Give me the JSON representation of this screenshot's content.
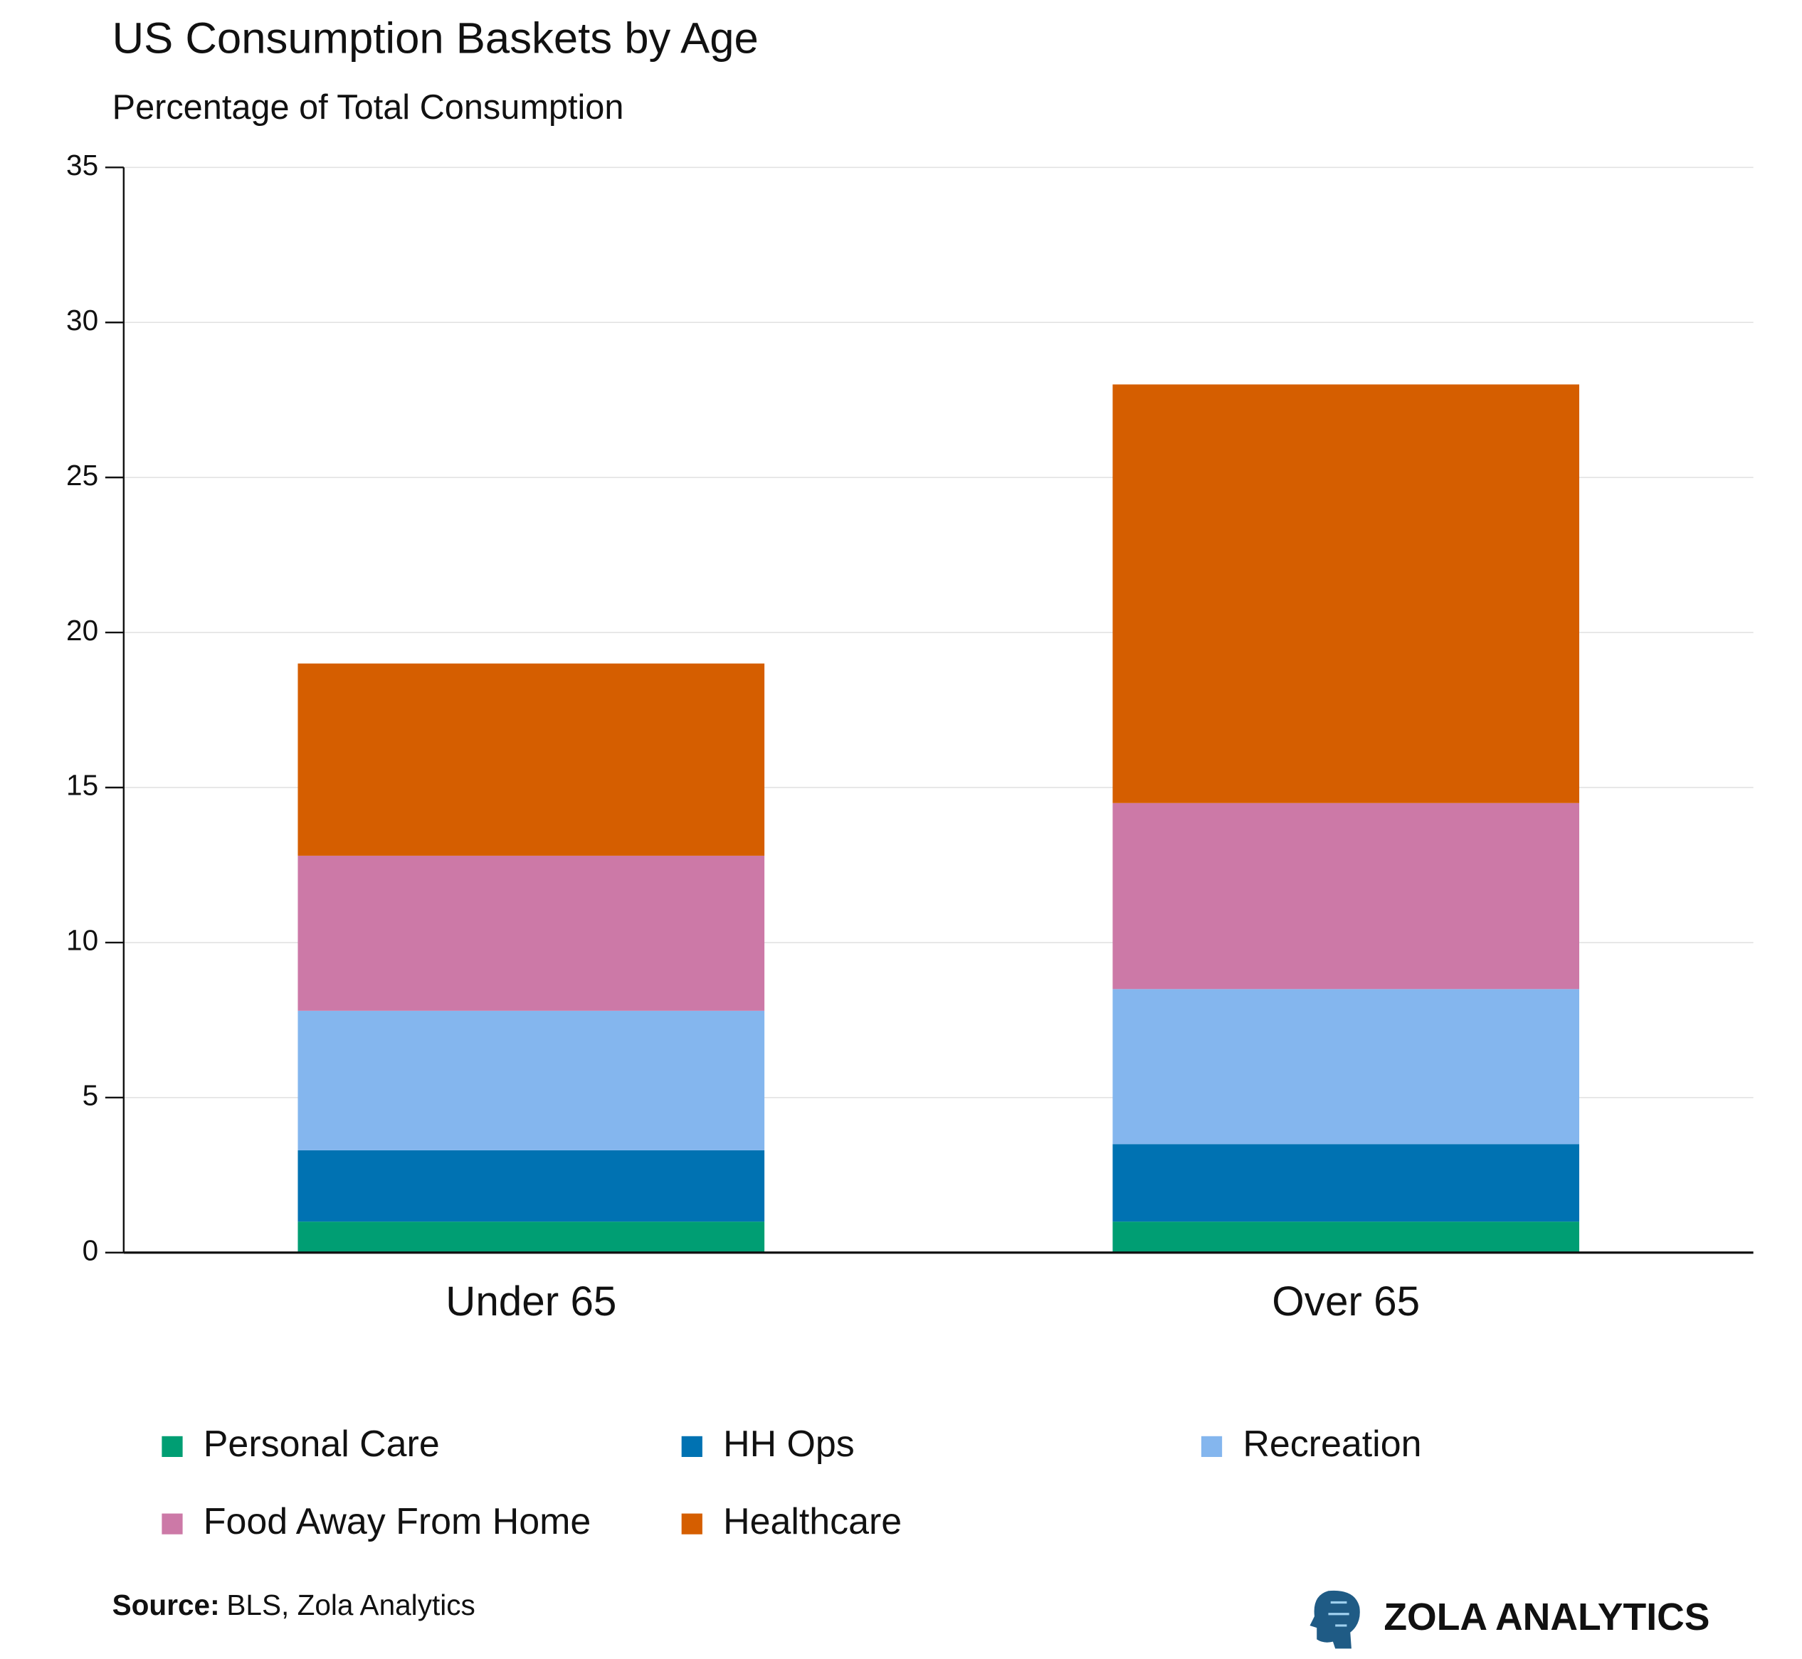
{
  "chart_data": {
    "type": "stacked_bar",
    "title": "US Consumption Baskets by Age",
    "subtitle": "Percentage of Total Consumption",
    "categories": [
      "Under 65",
      "Over 65"
    ],
    "series": [
      {
        "name": "Personal Care",
        "color": "#009e73",
        "values": [
          1.0,
          1.0
        ]
      },
      {
        "name": "HH Ops",
        "color": "#0072b2",
        "values": [
          2.3,
          2.5
        ]
      },
      {
        "name": "Recreation",
        "color": "#84b6ee",
        "values": [
          4.5,
          5.0
        ]
      },
      {
        "name": "Food Away From Home",
        "color": "#cc79a7",
        "values": [
          5.0,
          6.0
        ]
      },
      {
        "name": "Healthcare",
        "color": "#d55e00",
        "values": [
          6.2,
          13.5
        ]
      }
    ],
    "ylim": [
      0,
      35
    ],
    "yticks": [
      0,
      5,
      10,
      15,
      20,
      25,
      30,
      35
    ],
    "grid": true,
    "legend": "bottom",
    "source_label": "Source:",
    "source_text": "BLS, Zola Analytics",
    "brand": "ZOLA ANALYTICS"
  }
}
